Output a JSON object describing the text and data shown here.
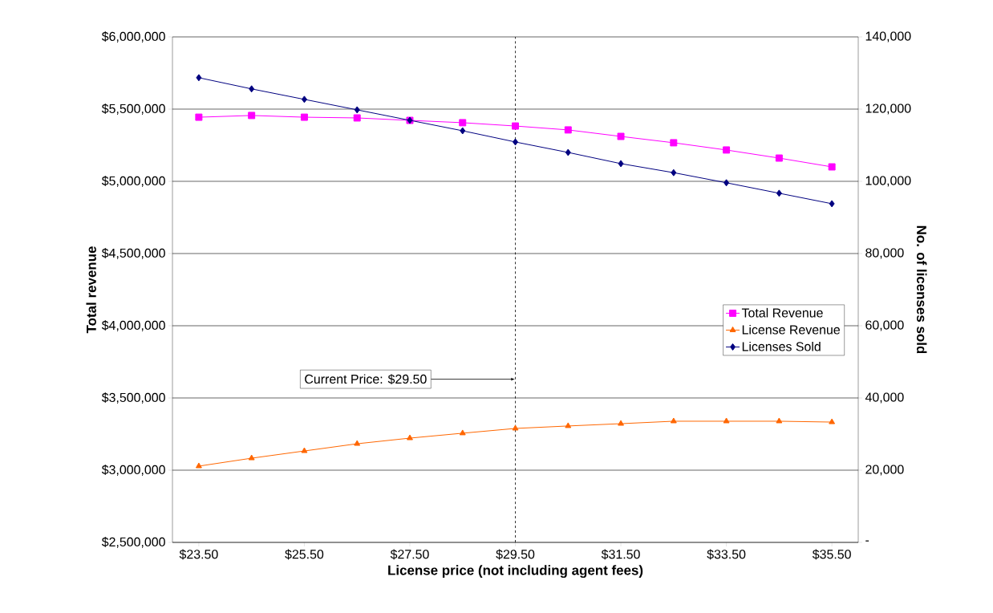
{
  "chart_data": {
    "type": "line",
    "xlabel": "License price (not including agent fees)",
    "ylabel": "Total revenue",
    "y2label": "No. of licenses sold",
    "x": [
      23.5,
      24.5,
      25.5,
      26.5,
      27.5,
      28.5,
      29.5,
      30.5,
      31.5,
      32.5,
      33.5,
      34.5,
      35.5
    ],
    "xlim": [
      23,
      36
    ],
    "xticks": [
      {
        "value": 23.5,
        "label": "$23.50"
      },
      {
        "value": 25.5,
        "label": "$25.50"
      },
      {
        "value": 27.5,
        "label": "$27.50"
      },
      {
        "value": 29.5,
        "label": "$29.50"
      },
      {
        "value": 31.5,
        "label": "$31.50"
      },
      {
        "value": 33.5,
        "label": "$33.50"
      },
      {
        "value": 35.5,
        "label": "$35.50"
      }
    ],
    "ylim": [
      2500000,
      6000000
    ],
    "yticks": [
      {
        "value": 2500000,
        "label": "$2,500,000"
      },
      {
        "value": 3000000,
        "label": "$3,000,000"
      },
      {
        "value": 3500000,
        "label": "$3,500,000"
      },
      {
        "value": 4000000,
        "label": "$4,000,000"
      },
      {
        "value": 4500000,
        "label": "$4,500,000"
      },
      {
        "value": 5000000,
        "label": "$5,000,000"
      },
      {
        "value": 5500000,
        "label": "$5,500,000"
      },
      {
        "value": 6000000,
        "label": "$6,000,000"
      }
    ],
    "y2lim": [
      0,
      140000
    ],
    "y2ticks": [
      {
        "value": 0,
        "label": "-"
      },
      {
        "value": 20000,
        "label": "20,000"
      },
      {
        "value": 40000,
        "label": "40,000"
      },
      {
        "value": 60000,
        "label": "60,000"
      },
      {
        "value": 80000,
        "label": "80,000"
      },
      {
        "value": 100000,
        "label": "100,000"
      },
      {
        "value": 120000,
        "label": "120,000"
      },
      {
        "value": 140000,
        "label": "140,000"
      }
    ],
    "series": [
      {
        "name": "Total Revenue",
        "color": "#ff00ff",
        "marker": "square",
        "values": [
          5444000,
          5456000,
          5444000,
          5439000,
          5422000,
          5406000,
          5383000,
          5356000,
          5311000,
          5267000,
          5217000,
          5161000,
          5100000
        ]
      },
      {
        "name": "License Revenue",
        "color": "#ff6600",
        "marker": "triangle",
        "values": [
          3028000,
          3083000,
          3133000,
          3183000,
          3222000,
          3256000,
          3289000,
          3306000,
          3322000,
          3339000,
          3339000,
          3339000,
          3333000
        ]
      },
      {
        "name": "Licenses Sold",
        "color": "#000080",
        "marker": "diamond",
        "axis": "y2",
        "values": [
          128700,
          125600,
          122700,
          119800,
          116900,
          114000,
          110900,
          108000,
          104900,
          102400,
          99600,
          96700,
          93800
        ]
      }
    ],
    "ref_lines": [
      {
        "axis": "x",
        "value": 29.5,
        "color": "#000000",
        "line_style": "dashed"
      }
    ],
    "annotations": [
      {
        "text": "Current Price: $29.50",
        "x": 29.5,
        "y": 3630000
      }
    ],
    "grid": "y",
    "legend": "right",
    "line_style": "solid"
  }
}
